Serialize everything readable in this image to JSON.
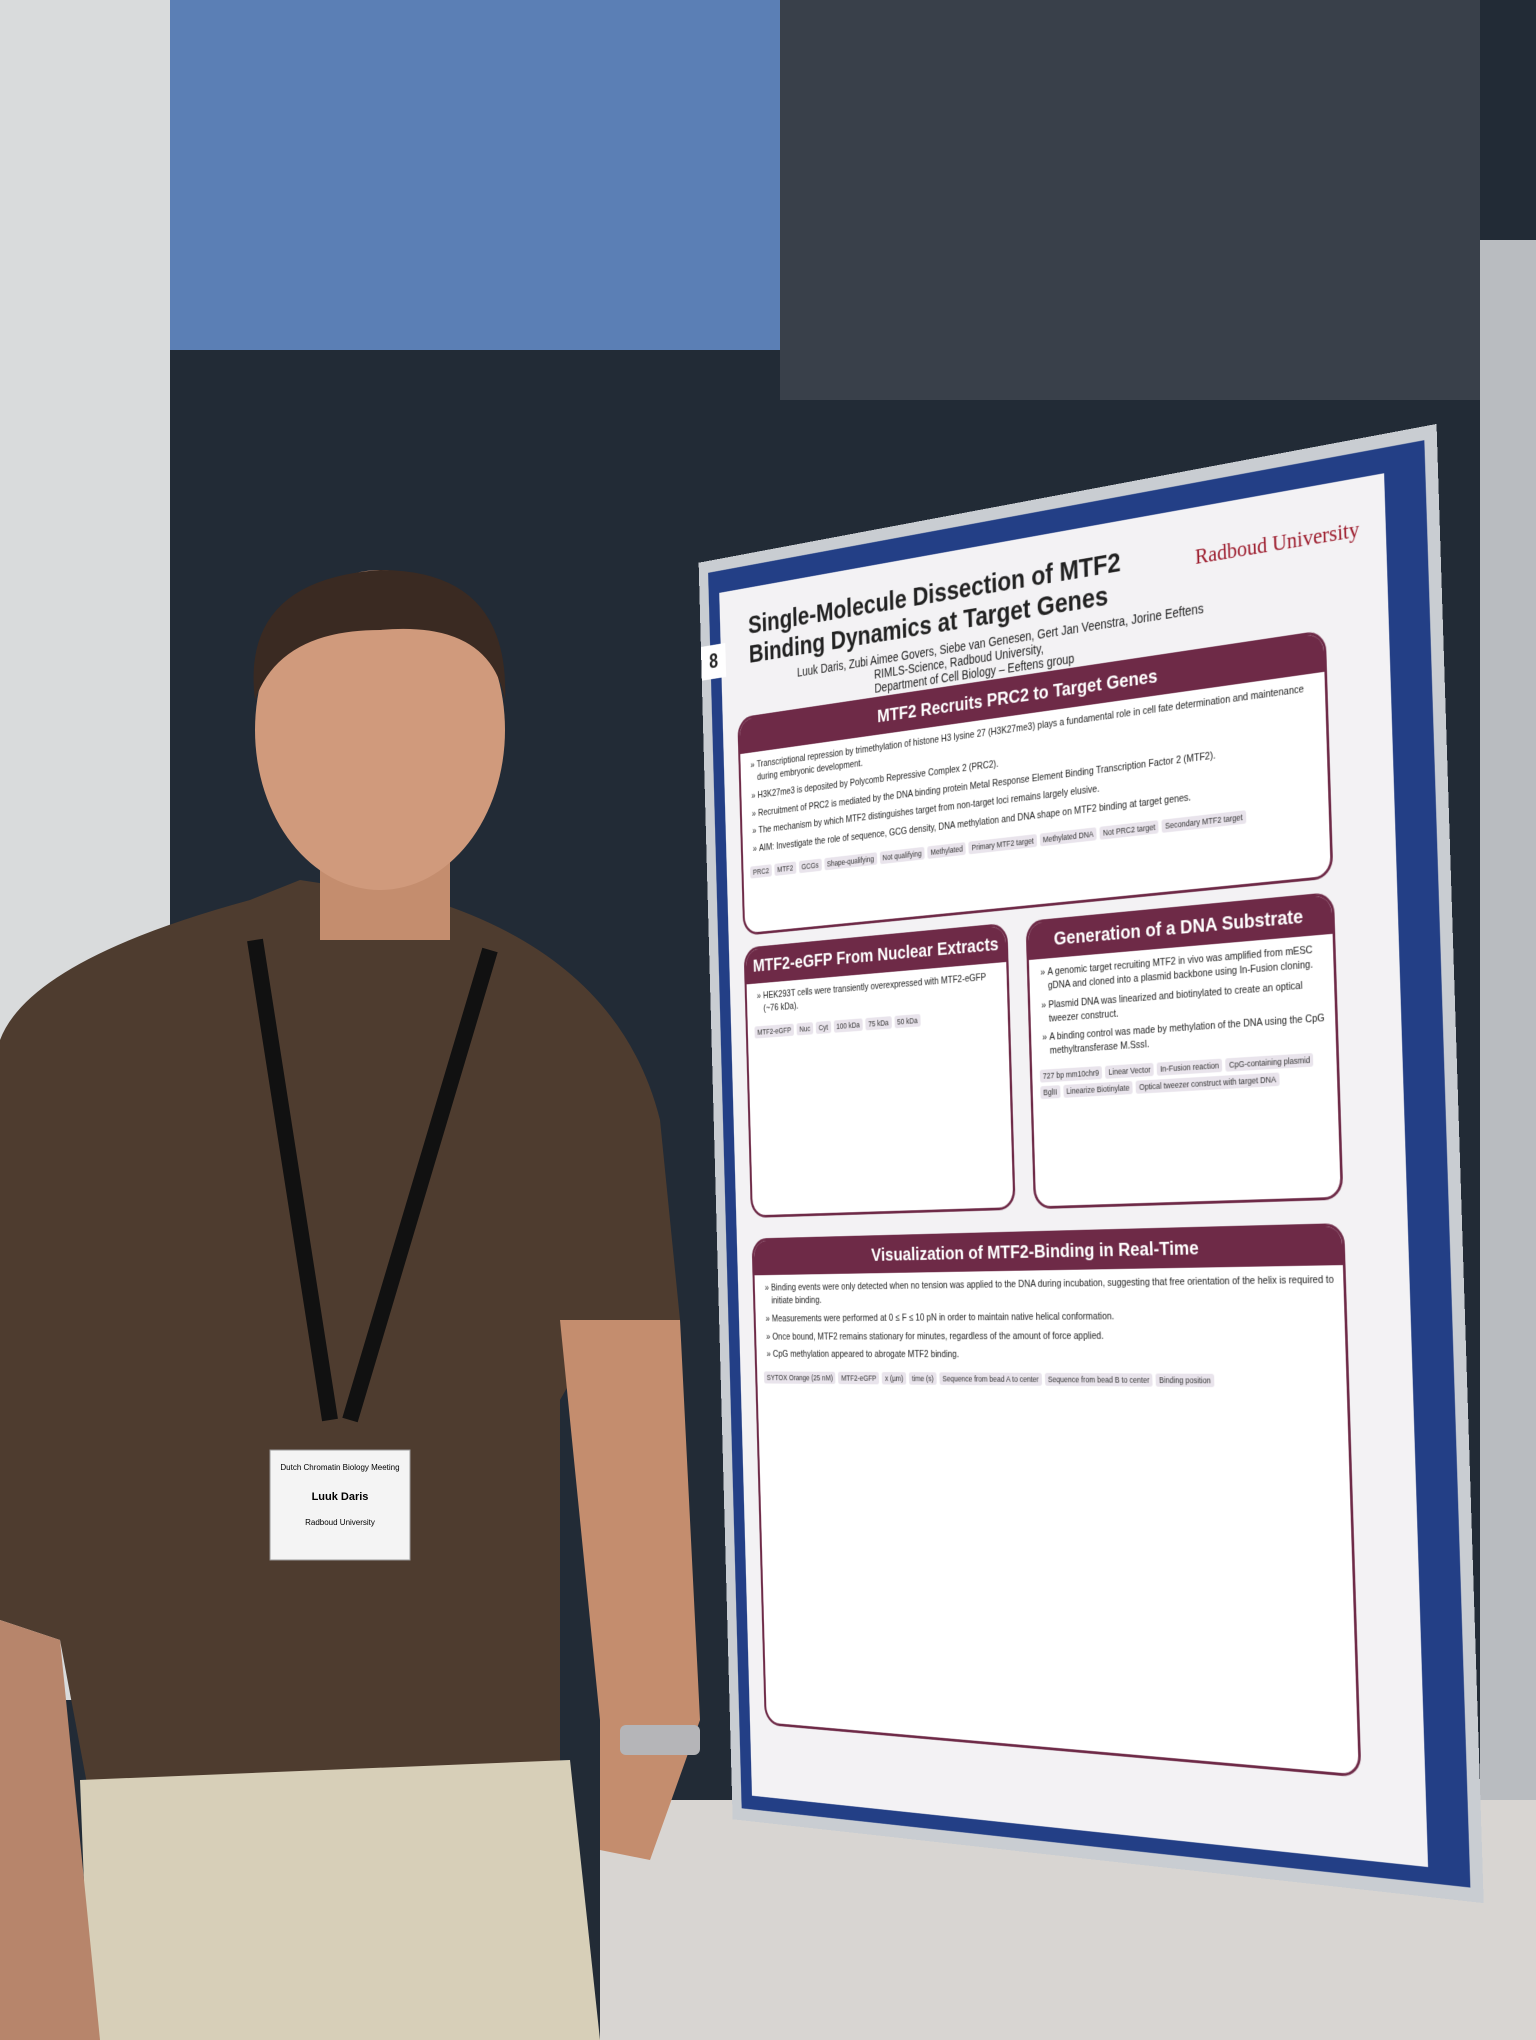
{
  "poster": {
    "number": "8",
    "title": "Single-Molecule Dissection of MTF2 Binding Dynamics at Target Genes",
    "authors": "Luuk Daris, Zubi Aimee Govers, Siebe van Genesen, Gert Jan Veenstra, Jorine Eeftens",
    "affiliation": [
      "RIMLS-Science, Radboud University,",
      "Department of Cell Biology – Eeftens group"
    ],
    "logo": "Radboud University",
    "sections": [
      {
        "heading": "MTF2 Recruits PRC2 to Target Genes",
        "bullets": [
          "Transcriptional repression by trimethylation of histone H3 lysine 27 (H3K27me3) plays a fundamental role in cell fate determination and maintenance during embryonic development.",
          "H3K27me3 is deposited by Polycomb Repressive Complex 2 (PRC2).",
          "Recruitment of PRC2 is mediated by the DNA binding protein Metal Response Element Binding Transcription Factor 2 (MTF2).",
          "The mechanism by which MTF2 distinguishes target from non-target loci remains largely elusive.",
          "AIM: Investigate the role of sequence, GCG density, DNA methylation and DNA shape on MTF2 binding at target genes."
        ],
        "figure_labels": [
          "PRC2",
          "MTF2",
          "GCGs",
          "Shape-qualifying",
          "Not qualifying",
          "Methylated",
          "Primary MTF2 target",
          "Methylated DNA",
          "Not PRC2 target",
          "Secondary MTF2 target"
        ]
      },
      {
        "heading": "MTF2-eGFP From Nuclear Extracts",
        "bullets": [
          "HEK293T cells were transiently overexpressed with MTF2-eGFP (~76 kDa)."
        ],
        "figure_labels": [
          "MTF2-eGFP",
          "Nuc",
          "Cyt",
          "100 kDa",
          "75 kDa",
          "50 kDa"
        ]
      },
      {
        "heading": "Generation of a DNA Substrate",
        "bullets": [
          "A genomic target recruiting MTF2 in vivo was amplified from mESC gDNA and cloned into a plasmid backbone using In-Fusion cloning.",
          "Plasmid DNA was linearized and biotinylated to create an optical tweezer construct.",
          "A binding control was made by methylation of the DNA using the CpG methyltransferase M.SssI."
        ],
        "figure_labels": [
          "727 bp mm10chr9",
          "Linear Vector",
          "In-Fusion reaction",
          "CpG-containing plasmid",
          "BglII",
          "Linearize Biotinylate",
          "Optical tweezer construct with target DNA"
        ]
      },
      {
        "heading": "Visualization of MTF2-Binding in Real-Time",
        "bullets": [
          "Binding events were only detected when no tension was applied to the DNA during incubation, suggesting that free orientation of the helix is required to initiate binding.",
          "Measurements were performed at 0 ≤ F ≤ 10 pN in order to maintain native helical conformation.",
          "Once bound, MTF2 remains stationary for minutes, regardless of the amount of force applied.",
          "CpG methylation appeared to abrogate MTF2 binding."
        ],
        "figure_labels": [
          "SYTOX Orange (25 nM)",
          "MTF2-eGFP",
          "x (µm)",
          "time (s)",
          "Sequence from bead A to center",
          "Sequence from bead B to center",
          "Binding position"
        ]
      }
    ]
  },
  "badge": {
    "event": "Dutch Chromatin Biology Meeting",
    "name": "Luuk Daris",
    "organization": "Radboud University"
  }
}
